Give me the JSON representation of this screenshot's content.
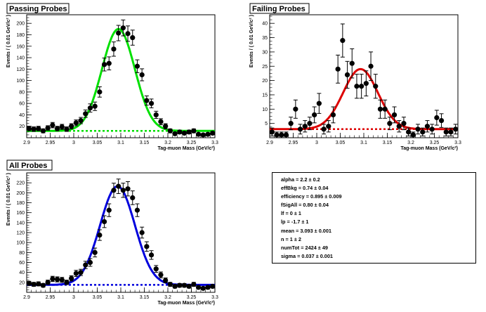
{
  "panels": [
    {
      "id": "passing",
      "title": "Passing Probes",
      "color": "#00e000",
      "chart_data": {
        "type": "scatter",
        "title": "Passing Probes",
        "xlabel": "Tag-muon Mass (GeV/c²)",
        "ylabel": "Events / ( 0.01 GeV/c² )",
        "xlim": [
          2.9,
          3.3
        ],
        "ylim": [
          0,
          215
        ],
        "xticks": [
          2.9,
          2.95,
          3,
          3.05,
          3.1,
          3.15,
          3.2,
          3.25,
          3.3
        ],
        "yticks": [
          0,
          20,
          40,
          60,
          80,
          100,
          120,
          140,
          160,
          180,
          200
        ],
        "series": [
          {
            "kind": "points",
            "x": [
              2.905,
              2.915,
              2.925,
              2.935,
              2.945,
              2.955,
              2.965,
              2.975,
              2.985,
              2.995,
              3.005,
              3.015,
              3.025,
              3.035,
              3.045,
              3.055,
              3.065,
              3.075,
              3.085,
              3.095,
              3.105,
              3.115,
              3.125,
              3.135,
              3.145,
              3.155,
              3.165,
              3.175,
              3.185,
              3.195,
              3.205,
              3.215,
              3.225,
              3.235,
              3.245,
              3.255,
              3.265,
              3.275,
              3.285,
              3.295
            ],
            "y": [
              16,
              15,
              16,
              12,
              17,
              22,
              16,
              19,
              15,
              20,
              26,
              30,
              42,
              52,
              55,
              80,
              128,
              130,
              155,
              183,
              192,
              182,
              175,
              125,
              110,
              65,
              60,
              40,
              28,
              20,
              12,
              7,
              10,
              8,
              10,
              12,
              6,
              5,
              6,
              8
            ],
            "err": [
              4,
              4,
              4,
              3.5,
              4,
              4.7,
              4,
              4.4,
              4,
              4.5,
              5.1,
              5.5,
              6.5,
              7.2,
              7.4,
              9,
              11.3,
              11.4,
              12.5,
              13.5,
              13.9,
              13.5,
              13.2,
              11.2,
              10.5,
              8.1,
              7.7,
              6.3,
              5.3,
              4.5,
              3.5,
              2.6,
              3.2,
              2.8,
              3.2,
              3.5,
              2.4,
              2.2,
              2.4,
              2.8
            ]
          },
          {
            "kind": "fit",
            "mean": 3.095,
            "sigma": 0.035,
            "amplitude": 178,
            "background": 12
          }
        ]
      }
    },
    {
      "id": "failing",
      "title": "Failing Probes",
      "color": "#dd0000",
      "chart_data": {
        "type": "scatter",
        "title": "Failing Probes",
        "xlabel": "Tag-muon Mass (GeV/c²)",
        "ylabel": "Events / ( 0.01 GeV/c² )",
        "xlim": [
          2.9,
          3.3
        ],
        "ylim": [
          0,
          43
        ],
        "xticks": [
          2.9,
          2.95,
          3,
          3.05,
          3.1,
          3.15,
          3.2,
          3.25,
          3.3
        ],
        "yticks": [
          0,
          5,
          10,
          15,
          20,
          25,
          30,
          35,
          40
        ],
        "series": [
          {
            "kind": "points",
            "x": [
              2.905,
              2.915,
              2.925,
              2.935,
              2.945,
              2.955,
              2.965,
              2.975,
              2.985,
              2.995,
              3.005,
              3.015,
              3.025,
              3.035,
              3.045,
              3.055,
              3.065,
              3.075,
              3.085,
              3.095,
              3.105,
              3.115,
              3.125,
              3.135,
              3.145,
              3.155,
              3.165,
              3.175,
              3.185,
              3.195,
              3.205,
              3.215,
              3.225,
              3.235,
              3.245,
              3.255,
              3.265,
              3.275,
              3.285,
              3.295
            ],
            "y": [
              2,
              1,
              1,
              1,
              5,
              10,
              3,
              4,
              5,
              8,
              12,
              3,
              4,
              8,
              24,
              34,
              22,
              26,
              18,
              18,
              19,
              25,
              18,
              10,
              10,
              5,
              8,
              4,
              5,
              2,
              1,
              3,
              2,
              4,
              3,
              7,
              6,
              2,
              2,
              3
            ],
            "err": [
              1.4,
              1,
              1,
              1,
              2.2,
              3.2,
              1.7,
              2,
              2.2,
              2.8,
              3.5,
              1.7,
              2,
              2.8,
              4.9,
              5.8,
              4.7,
              5.1,
              4.2,
              4.2,
              4.4,
              5,
              4.2,
              3.2,
              3.2,
              2.2,
              2.8,
              2,
              2.2,
              1.4,
              1,
              1.7,
              1.4,
              2,
              1.7,
              2.6,
              2.4,
              1.4,
              1.4,
              1.7
            ]
          },
          {
            "kind": "fit",
            "mean": 3.093,
            "sigma": 0.037,
            "amplitude": 21,
            "background": 3
          }
        ]
      }
    },
    {
      "id": "all",
      "title": "All Probes",
      "color": "#0000dd",
      "chart_data": {
        "type": "scatter",
        "title": "All Probes",
        "xlabel": "Tag-muon Mass (GeV/c²)",
        "ylabel": "Events / ( 0.01 GeV/c² )",
        "xlim": [
          2.9,
          3.3
        ],
        "ylim": [
          0,
          240
        ],
        "xticks": [
          2.9,
          2.95,
          3,
          3.05,
          3.1,
          3.15,
          3.2,
          3.25,
          3.3
        ],
        "yticks": [
          0,
          20,
          40,
          60,
          80,
          100,
          120,
          140,
          160,
          180,
          200,
          220
        ],
        "series": [
          {
            "kind": "points",
            "x": [
              2.905,
              2.915,
              2.925,
              2.935,
              2.945,
              2.955,
              2.965,
              2.975,
              2.985,
              2.995,
              3.005,
              3.015,
              3.025,
              3.035,
              3.045,
              3.055,
              3.065,
              3.075,
              3.085,
              3.095,
              3.105,
              3.115,
              3.125,
              3.135,
              3.145,
              3.155,
              3.165,
              3.175,
              3.185,
              3.195,
              3.205,
              3.215,
              3.225,
              3.235,
              3.245,
              3.255,
              3.265,
              3.275,
              3.285,
              3.295
            ],
            "y": [
              18,
              16,
              17,
              14,
              20,
              27,
              26,
              25,
              20,
              28,
              38,
              40,
              55,
              60,
              80,
              115,
              142,
              165,
              205,
              213,
              205,
              208,
              190,
              165,
              120,
              92,
              75,
              47,
              35,
              24,
              16,
              12,
              14,
              14,
              12,
              16,
              10,
              8,
              10,
              12
            ],
            "err": [
              4.2,
              4,
              4.1,
              3.7,
              4.5,
              5.2,
              5.1,
              5,
              4.5,
              5.3,
              6.2,
              6.3,
              7.4,
              7.7,
              8.9,
              10.7,
              11.9,
              12.8,
              14.3,
              14.6,
              14.3,
              14.4,
              13.8,
              12.8,
              11,
              9.6,
              8.7,
              6.9,
              5.9,
              4.9,
              4,
              3.5,
              3.7,
              3.7,
              3.5,
              4,
              3.2,
              2.8,
              3.2,
              3.5
            ]
          },
          {
            "kind": "fit",
            "mean": 3.093,
            "sigma": 0.037,
            "amplitude": 198,
            "background": 15
          }
        ]
      }
    }
  ],
  "fit_params": [
    "alpha = 2.2  ± 0.2",
    "effBkg = 0.74 ± 0.04",
    "efficiency = 0.895  ± 0.009",
    "fSigAll = 0.80  ± 0.04",
    "lf = 0  ± 1",
    "lp = -1.7  ± 1",
    "mean = 3.093  ± 0.001",
    "n = 1  ± 2",
    "numTot = 2424  ± 49",
    "sigma = 0.037  ± 0.001"
  ],
  "x_tick_labels": [
    "2.9",
    "2.95",
    "3",
    "3.05",
    "3.1",
    "3.15",
    "3.2",
    "3.25",
    "3.3"
  ]
}
